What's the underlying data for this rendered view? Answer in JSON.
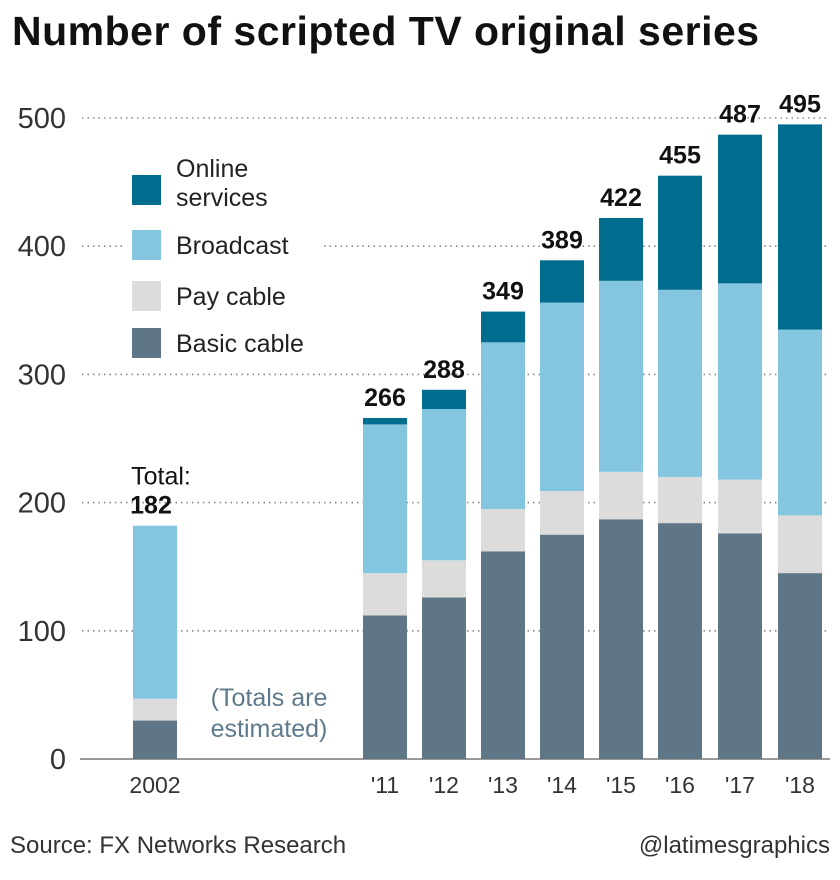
{
  "title": "Number of scripted TV original series",
  "source": "Source: FX Networks Research",
  "credit": "@latimesgraphics",
  "total_label": "Total:",
  "note_lines": [
    "(Totals are",
    "estimated)"
  ],
  "chart_data": {
    "type": "bar",
    "stacked": true,
    "categories": [
      "2002",
      "'11",
      "'12",
      "'13",
      "'14",
      "'15",
      "'16",
      "'17",
      "'18"
    ],
    "series": [
      {
        "name": "Basic cable",
        "color": "#5e7686",
        "values": [
          30,
          112,
          126,
          162,
          175,
          187,
          184,
          176,
          145
        ]
      },
      {
        "name": "Pay cable",
        "color": "#dcdcdc",
        "values": [
          17,
          33,
          29,
          33,
          34,
          37,
          36,
          42,
          45
        ]
      },
      {
        "name": "Broadcast",
        "color": "#84c5e0",
        "values": [
          135,
          116,
          118,
          130,
          147,
          149,
          146,
          153,
          145
        ]
      },
      {
        "name": "Online services",
        "color": "#006c8e",
        "values": [
          0,
          5,
          15,
          24,
          33,
          49,
          89,
          116,
          160
        ]
      }
    ],
    "totals": [
      182,
      266,
      288,
      349,
      389,
      422,
      455,
      487,
      495
    ],
    "yticks": [
      0,
      100,
      200,
      300,
      400,
      500
    ],
    "ylim": [
      0,
      500
    ],
    "grid": true,
    "legend_position": "top-left",
    "legend_order": [
      "Online services",
      "Broadcast",
      "Pay cable",
      "Basic cable"
    ],
    "legend_labels": {
      "Online services": [
        "Online",
        "services"
      ],
      "Broadcast": [
        "Broadcast"
      ],
      "Pay cable": [
        "Pay cable"
      ],
      "Basic cable": [
        "Basic cable"
      ]
    }
  }
}
